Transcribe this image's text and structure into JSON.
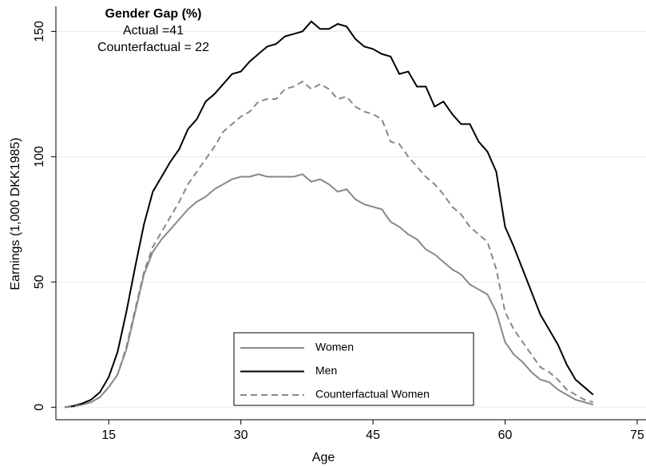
{
  "chart_data": {
    "type": "line",
    "annotations": [
      "Gender Gap (%)",
      "Actual =41",
      "Counterfactual = 22"
    ],
    "xlabel": "Age",
    "ylabel": "Earnings (1,000 DKK1985)",
    "x": [
      10,
      11,
      12,
      13,
      14,
      15,
      16,
      17,
      18,
      19,
      20,
      21,
      22,
      23,
      24,
      25,
      26,
      27,
      28,
      29,
      30,
      31,
      32,
      33,
      34,
      35,
      36,
      37,
      38,
      39,
      40,
      41,
      42,
      43,
      44,
      45,
      46,
      47,
      48,
      49,
      50,
      51,
      52,
      53,
      54,
      55,
      56,
      57,
      58,
      59,
      60,
      61,
      62,
      63,
      64,
      65,
      66,
      67,
      68,
      69,
      70
    ],
    "series": [
      {
        "name": "Women",
        "color": "#888888",
        "style": "solid",
        "values": [
          0,
          0.3,
          1,
          2,
          4,
          8,
          13,
          23,
          38,
          53,
          62,
          67,
          71,
          75,
          79,
          82,
          84,
          87,
          89,
          91,
          92,
          92,
          93,
          92,
          92,
          92,
          92,
          93,
          90,
          91,
          89,
          86,
          87,
          83,
          81,
          80,
          79,
          74,
          72,
          69,
          67,
          63,
          61,
          58,
          55,
          53,
          49,
          47,
          45,
          38,
          26,
          21,
          18,
          14,
          11,
          10,
          7,
          5,
          3,
          2,
          1
        ]
      },
      {
        "name": "Men",
        "color": "#000000",
        "style": "solid",
        "values": [
          0,
          0.5,
          1.5,
          3,
          6,
          12,
          22,
          38,
          56,
          73,
          86,
          92,
          98,
          103,
          111,
          115,
          122,
          125,
          129,
          133,
          134,
          138,
          141,
          144,
          145,
          148,
          149,
          150,
          154,
          151,
          151,
          153,
          152,
          147,
          144,
          143,
          141,
          140,
          133,
          134,
          128,
          128,
          120,
          122,
          117,
          113,
          113,
          106,
          102,
          94,
          72,
          64,
          55,
          46,
          37,
          31,
          25,
          17,
          11,
          8,
          5
        ]
      },
      {
        "name": "Counterfactual Women",
        "color": "#888888",
        "style": "dashed",
        "values": [
          0,
          0.3,
          1,
          2,
          4,
          8,
          13,
          24,
          39,
          54,
          64,
          70,
          76,
          82,
          89,
          94,
          99,
          104,
          110,
          113,
          116,
          118,
          122,
          123,
          123,
          127,
          128,
          130,
          127,
          129,
          127,
          123,
          124,
          120,
          118,
          117,
          115,
          106,
          105,
          100,
          96,
          92,
          89,
          85,
          80,
          77,
          72,
          69,
          66,
          55,
          38,
          31,
          26,
          21,
          16,
          14,
          11,
          7,
          5,
          3,
          2
        ]
      }
    ],
    "xlim": [
      9,
      76
    ],
    "xticks": [
      15,
      30,
      45,
      60,
      75
    ],
    "ylim": [
      -5,
      160
    ],
    "yticks": [
      0,
      50,
      100,
      150
    ],
    "grid": true,
    "legend": "bottom"
  }
}
